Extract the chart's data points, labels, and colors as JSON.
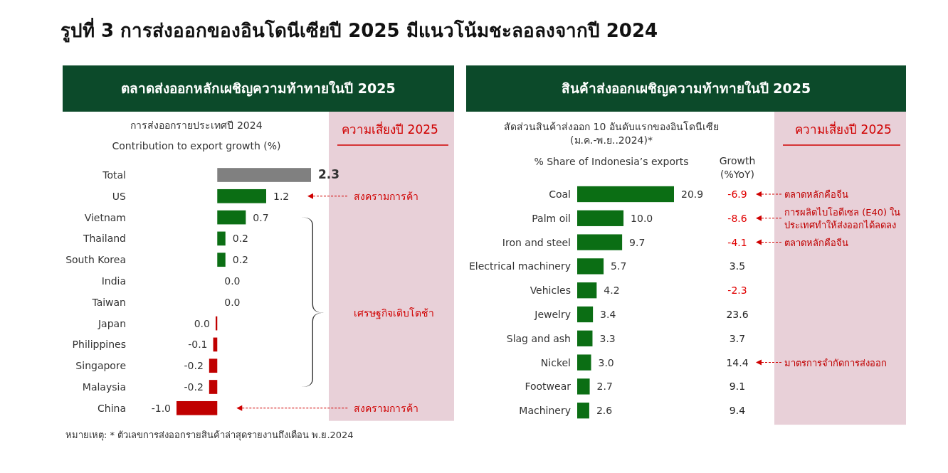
{
  "chart_data": [
    {
      "type": "bar",
      "orientation": "horizontal",
      "title": "ตลาดส่งออกหลักเผชิญความท้าทายในปี 2025",
      "subtitle": "การส่งออกรายประเทศปี 2024",
      "xlabel": "Contribution to export growth (%)",
      "categories": [
        "Total",
        "US",
        "Vietnam",
        "Thailand",
        "South Korea",
        "India",
        "Taiwan",
        "Japan",
        "Philippines",
        "Singapore",
        "Malaysia",
        "China"
      ],
      "values": [
        2.3,
        1.2,
        0.7,
        0.2,
        0.2,
        0.0,
        0.0,
        -0.04,
        -0.1,
        -0.2,
        -0.2,
        -1.0
      ],
      "value_labels": [
        "2.3",
        "1.2",
        "0.7",
        "0.2",
        "0.2",
        "0.0",
        "0.0",
        "0.0",
        "-0.1",
        "-0.2",
        "-0.2",
        "-1.0"
      ],
      "colors": [
        "#808080",
        "#0b6e14",
        "#0b6e14",
        "#0b6e14",
        "#0b6e14",
        "#0b6e14",
        "#0b6e14",
        "#c00000",
        "#c00000",
        "#c00000",
        "#c00000",
        "#c00000"
      ],
      "annotations": [
        "รูปที่ 3 การส่งออกของอินโดนีเซียปี 2025 มีแนวโน้มชะลอลงจากปี 2024",
        "ความเสี่ยงปี 2025",
        "เศรษฐกิจเติบโตช้า",
        "สงครามการค้า",
        "สงครามการค้า"
      ]
    },
    {
      "type": "bar",
      "orientation": "horizontal",
      "title": "สินค้าส่งออกเผชิญความท้าทายในปี 2025",
      "subtitle": "สัดส่วนสินค้าส่งออก 10 อันดับแรกของอินโดนีเซีย\n(ม.ค.-พ.ย..2024)*",
      "xlabel": "% Share of Indonesia’s exports",
      "categories": [
        "Coal",
        "Palm oil",
        "Iron and steel",
        "Electrical machinery",
        "Vehicles",
        "Jewelry",
        "Slag and ash",
        "Nickel",
        "Footwear",
        "Machinery"
      ],
      "values": [
        20.9,
        10.0,
        9.7,
        5.7,
        4.2,
        3.4,
        3.3,
        3.0,
        2.7,
        2.6
      ],
      "value_labels": [
        "20.9",
        "10.0",
        "9.7",
        "5.7",
        "4.2",
        "3.4",
        "3.3",
        "3.0",
        "2.7",
        "2.6"
      ],
      "color": "#0b6e14",
      "annotations": [
        "ความเสี่ยงปี 2025",
        "หมายเหตุ: * ตัวเลขการส่งออกรายสินค้าล่าสุดรายงานถึงเดือน พ.ย.2024",
        "ตลาดหลักคือจีน",
        "การผลิตไบโอดีเซล (E40) ใน\nประเทศทำให้ส่งออกได้ลดลง",
        "ตลาดหลักคือจีน",
        "มาตรการจำกัดการส่งออก"
      ]
    },
    {
      "type": "other",
      "title": "Growth\n(%YoY)",
      "categories": [
        null,
        null,
        null,
        null,
        null,
        null,
        null,
        null,
        null,
        null
      ],
      "values": [
        -6.9,
        -8.6,
        -4.1,
        3.5,
        -2.3,
        23.6,
        3.7,
        14.4,
        9.1,
        9.4
      ],
      "data_labels": true,
      "colors": [
        "#e00000",
        "#e00000",
        "#e00000",
        "#222222",
        "#e00000",
        "#222222",
        "#222222",
        "#222222",
        "#222222",
        "#222222"
      ]
    }
  ]
}
